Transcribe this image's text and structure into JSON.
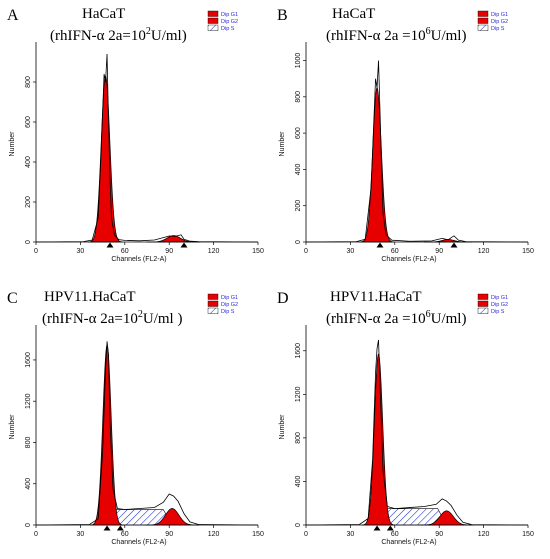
{
  "chart_data": [
    {
      "type": "area",
      "panel_label": "A",
      "title_line1": "HaCaT",
      "title_line2": {
        "pre": "(rhIFN-α 2a=10",
        "sup": "2",
        "post": "U/ml)"
      },
      "xlabel": "Channels (FL2-A)",
      "ylabel": "Number",
      "xlim": [
        0,
        150
      ],
      "ylim": [
        0,
        980
      ],
      "xticks": [
        0,
        30,
        60,
        90,
        120,
        150
      ],
      "yticks": [
        0,
        200,
        400,
        600,
        800
      ],
      "markers_x": [
        50,
        100
      ],
      "legend": [
        "Dip G1",
        "Dip G2",
        "Dip S"
      ],
      "series": [
        {
          "name": "Dip G1",
          "peak_x": 47,
          "peak_y": 830,
          "sigma": 2.9
        },
        {
          "name": "Dip G2",
          "peak_x": 93,
          "peak_y": 32,
          "sigma": 4.5
        },
        {
          "name": "Dip S",
          "level": 0
        }
      ],
      "raw_histogram": [
        [
          0,
          0
        ],
        [
          32,
          2
        ],
        [
          38,
          10
        ],
        [
          42,
          120
        ],
        [
          44,
          450
        ],
        [
          46,
          840
        ],
        [
          47,
          800
        ],
        [
          48,
          940
        ],
        [
          49,
          600
        ],
        [
          50,
          320
        ],
        [
          51,
          120
        ],
        [
          53,
          35
        ],
        [
          56,
          12
        ],
        [
          60,
          8
        ],
        [
          70,
          6
        ],
        [
          80,
          10
        ],
        [
          86,
          22
        ],
        [
          90,
          30
        ],
        [
          94,
          28
        ],
        [
          98,
          36
        ],
        [
          100,
          14
        ],
        [
          104,
          4
        ],
        [
          110,
          2
        ],
        [
          150,
          0
        ]
      ]
    },
    {
      "type": "area",
      "panel_label": "B",
      "title_line1": "HaCaT",
      "title_line2": {
        "pre": "(rhIFN-α 2a =10",
        "sup": "6",
        "post": "U/ml)"
      },
      "xlabel": "Channels (FL2-A)",
      "ylabel": "Number",
      "xlim": [
        0,
        150
      ],
      "ylim": [
        0,
        1080
      ],
      "xticks": [
        0,
        30,
        60,
        90,
        120,
        150
      ],
      "yticks": [
        0,
        200,
        400,
        600,
        800,
        1000
      ],
      "markers_x": [
        50,
        100
      ],
      "legend": [
        "Dip G1",
        "Dip G2",
        "Dip S"
      ],
      "series": [
        {
          "name": "Dip G1",
          "peak_x": 48,
          "peak_y": 850,
          "sigma": 2.9
        },
        {
          "name": "Dip G2",
          "peak_x": 96,
          "peak_y": 14,
          "sigma": 4.0
        },
        {
          "name": "Dip S",
          "level": 0
        }
      ],
      "raw_histogram": [
        [
          0,
          0
        ],
        [
          34,
          2
        ],
        [
          40,
          15
        ],
        [
          44,
          300
        ],
        [
          46,
          700
        ],
        [
          47,
          900
        ],
        [
          48,
          850
        ],
        [
          49,
          1000
        ],
        [
          50,
          720
        ],
        [
          51,
          420
        ],
        [
          52,
          160
        ],
        [
          54,
          40
        ],
        [
          58,
          10
        ],
        [
          70,
          4
        ],
        [
          85,
          6
        ],
        [
          92,
          20
        ],
        [
          96,
          12
        ],
        [
          100,
          34
        ],
        [
          103,
          10
        ],
        [
          108,
          2
        ],
        [
          150,
          0
        ]
      ]
    },
    {
      "type": "area",
      "panel_label": "C",
      "title_line1": "HPV11.HaCaT",
      "title_line2": {
        "pre": "(rhIFN-α 2a=10",
        "sup": "2",
        "post": "U/ml )"
      },
      "xlabel": "Channels (FL2-A)",
      "ylabel": "Number",
      "xlim": [
        0,
        150
      ],
      "ylim": [
        0,
        1900
      ],
      "xticks": [
        0,
        30,
        60,
        90,
        120,
        150
      ],
      "yticks": [
        0,
        400,
        800,
        1200,
        1600
      ],
      "markers_x": [
        48,
        57
      ],
      "legend": [
        "Dip G1",
        "Dip G2",
        "Dip S"
      ],
      "series": [
        {
          "name": "Dip G1",
          "peak_x": 48,
          "peak_y": 1740,
          "sigma": 2.8
        },
        {
          "name": "Dip G2",
          "peak_x": 92,
          "peak_y": 160,
          "sigma": 4.5
        },
        {
          "name": "Dip S",
          "level": 150
        }
      ],
      "raw_histogram": [
        [
          0,
          0
        ],
        [
          36,
          4
        ],
        [
          42,
          60
        ],
        [
          45,
          700
        ],
        [
          47,
          1500
        ],
        [
          48,
          1780
        ],
        [
          49,
          1650
        ],
        [
          50,
          1000
        ],
        [
          52,
          350
        ],
        [
          55,
          160
        ],
        [
          60,
          150
        ],
        [
          70,
          160
        ],
        [
          80,
          170
        ],
        [
          86,
          220
        ],
        [
          90,
          300
        ],
        [
          93,
          280
        ],
        [
          96,
          230
        ],
        [
          100,
          110
        ],
        [
          104,
          30
        ],
        [
          110,
          4
        ],
        [
          150,
          0
        ]
      ]
    },
    {
      "type": "area",
      "panel_label": "D",
      "title_line1": "HPV11.HaCaT",
      "title_line2": {
        "pre": "(rhIFN-α 2a =10",
        "sup": "6",
        "post": "U/ml)"
      },
      "xlabel": "Channels (FL2-A)",
      "ylabel": "Number",
      "xlim": [
        0,
        150
      ],
      "ylim": [
        0,
        1800
      ],
      "xticks": [
        0,
        30,
        60,
        90,
        120,
        150
      ],
      "yticks": [
        0,
        400,
        800,
        1200,
        1600
      ],
      "markers_x": [
        48,
        57
      ],
      "legend": [
        "Dip G1",
        "Dip G2",
        "Dip S"
      ],
      "series": [
        {
          "name": "Dip G1",
          "peak_x": 49,
          "peak_y": 1570,
          "sigma": 2.8
        },
        {
          "name": "Dip G2",
          "peak_x": 95,
          "peak_y": 130,
          "sigma": 4.5
        },
        {
          "name": "Dip S",
          "level": 150
        }
      ],
      "raw_histogram": [
        [
          0,
          0
        ],
        [
          36,
          4
        ],
        [
          42,
          60
        ],
        [
          45,
          600
        ],
        [
          47,
          1400
        ],
        [
          48,
          1620
        ],
        [
          49,
          1700
        ],
        [
          50,
          1300
        ],
        [
          52,
          500
        ],
        [
          55,
          170
        ],
        [
          60,
          150
        ],
        [
          70,
          160
        ],
        [
          80,
          170
        ],
        [
          88,
          190
        ],
        [
          92,
          240
        ],
        [
          95,
          220
        ],
        [
          98,
          180
        ],
        [
          102,
          90
        ],
        [
          106,
          25
        ],
        [
          112,
          3
        ],
        [
          150,
          0
        ]
      ]
    }
  ],
  "colors": {
    "g1_fill": "#e60000",
    "g2_fill": "#e60000",
    "s_hatch": "#1b2fd0",
    "outline": "#000000",
    "legend_text": "#2a2ad8"
  }
}
